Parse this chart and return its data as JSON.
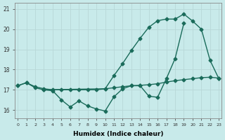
{
  "xlabel": "Humidex (Indice chaleur)",
  "bg_color": "#c8eaea",
  "grid_color": "#b8d8d8",
  "line_color": "#1a6b5a",
  "x_ticks": [
    0,
    1,
    2,
    3,
    4,
    5,
    6,
    7,
    8,
    9,
    10,
    11,
    12,
    13,
    14,
    15,
    16,
    17,
    18,
    19,
    20,
    21,
    22,
    23
  ],
  "y_ticks": [
    16,
    17,
    18,
    19,
    20,
    21
  ],
  "ylim": [
    15.6,
    21.3
  ],
  "xlim": [
    -0.3,
    23.3
  ],
  "series": [
    {
      "x": [
        0,
        1,
        2,
        3,
        4,
        5,
        6,
        7,
        8,
        9,
        10,
        11,
        12,
        13,
        14,
        15,
        16,
        17,
        18,
        19
      ],
      "y": [
        17.2,
        17.35,
        17.1,
        17.0,
        16.95,
        16.5,
        16.15,
        16.45,
        16.2,
        16.05,
        15.95,
        16.65,
        17.05,
        17.2,
        17.2,
        16.68,
        16.63,
        17.55,
        18.55,
        20.3
      ]
    },
    {
      "x": [
        3,
        10,
        11,
        12,
        13,
        14,
        15,
        16,
        17,
        18,
        19,
        20,
        21,
        22,
        23
      ],
      "y": [
        17.0,
        17.05,
        17.7,
        18.3,
        18.95,
        19.55,
        20.1,
        20.42,
        20.5,
        20.5,
        20.75,
        20.4,
        20.0,
        18.45,
        17.55
      ]
    },
    {
      "x": [
        0,
        1,
        2,
        3,
        4,
        5,
        6,
        7,
        8,
        9,
        10,
        11,
        12,
        13,
        14,
        15,
        16,
        17,
        18,
        19,
        20,
        21,
        22,
        23
      ],
      "y": [
        17.2,
        17.35,
        17.15,
        17.05,
        17.0,
        17.0,
        17.0,
        17.0,
        17.0,
        17.0,
        17.05,
        17.1,
        17.15,
        17.2,
        17.22,
        17.25,
        17.3,
        17.38,
        17.45,
        17.5,
        17.55,
        17.6,
        17.62,
        17.58
      ]
    }
  ],
  "marker": "D",
  "marker_size": 2.5,
  "linewidth": 1.0
}
